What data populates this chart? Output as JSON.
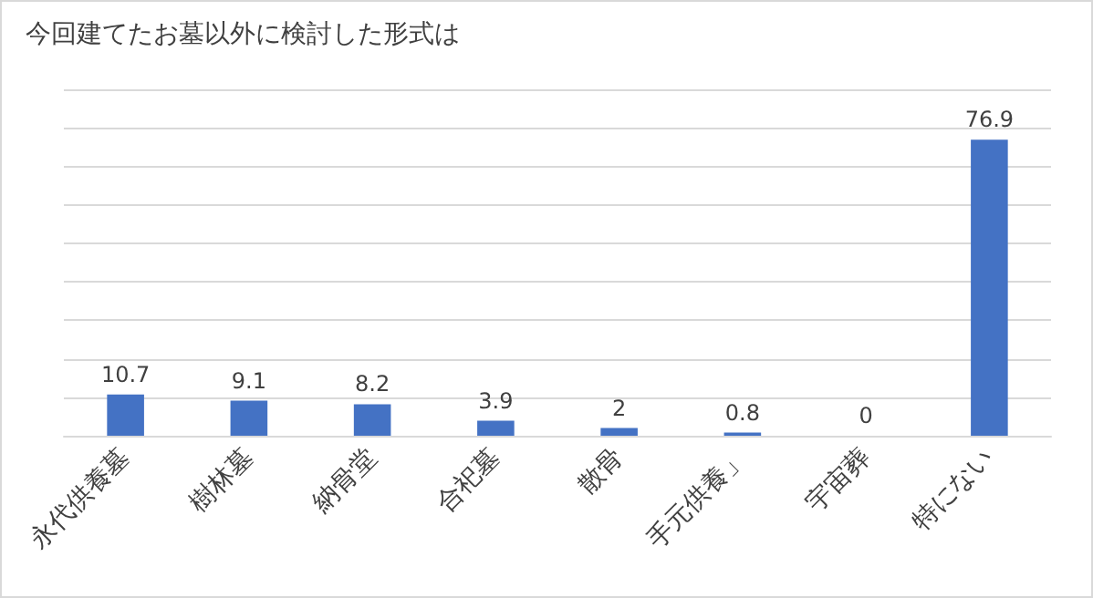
{
  "chart_data": {
    "type": "bar",
    "title": "今回建てたお墓以外に検討した形式は",
    "categories": [
      "永代供養墓",
      "樹林墓",
      "納骨堂",
      "合祀墓",
      "散骨",
      "手元供養」",
      "宇宙葬",
      "特にない"
    ],
    "values": [
      10.7,
      9.1,
      8.2,
      3.9,
      2,
      0.8,
      0,
      76.9
    ],
    "color": "#4472c4",
    "ylim": [
      0,
      90
    ],
    "yticks": [
      0,
      10,
      20,
      30,
      40,
      50,
      60,
      70,
      80,
      90
    ],
    "tick_labels": "x",
    "grid": "y",
    "data_labels": true
  }
}
